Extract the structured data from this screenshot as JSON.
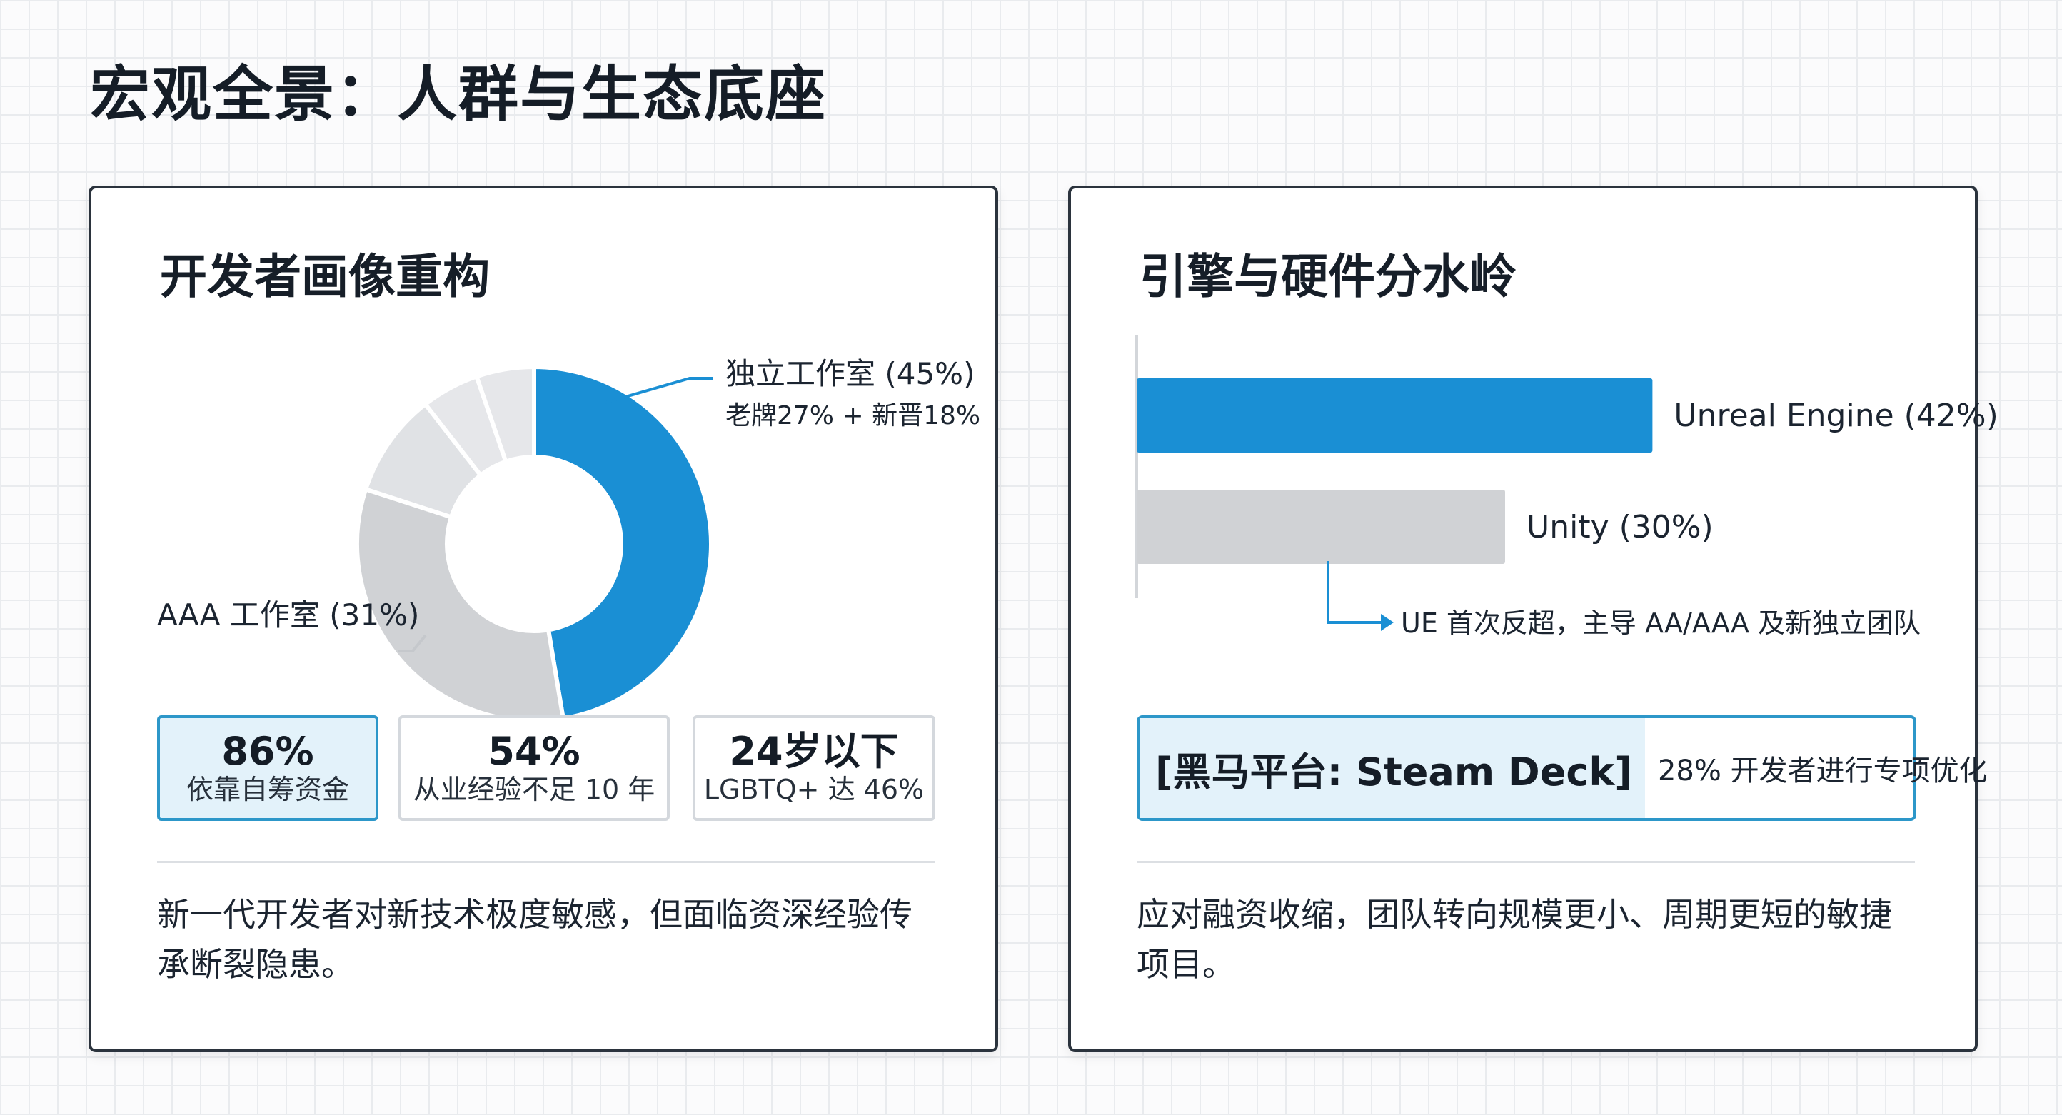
{
  "page_title": "宏观全景：人群与生态底座",
  "colors": {
    "accent": "#1a8fd4",
    "gray": "#d0d2d5",
    "light_gray": "#e1e3e6",
    "border": "#2b333d"
  },
  "left_card": {
    "title": "开发者画像重构",
    "stats": [
      {
        "value": "86%",
        "label": "依靠自筹资金",
        "highlight": true
      },
      {
        "value": "54%",
        "label": "从业经验不足 10 年",
        "highlight": false
      },
      {
        "value": "24岁以下",
        "label": "LGBTQ+ 达 46%",
        "highlight": false
      }
    ],
    "summary": "新一代开发者对新技术极度敏感，但面临资深经验传承断裂隐患。"
  },
  "right_card": {
    "title": "引擎与硬件分水岭",
    "annotation": "UE 首次反超，主导 AA/AAA 及新独立团队",
    "callout": {
      "tag": "[黑马平台: Steam Deck]",
      "text": "28% 开发者进行专项优化"
    },
    "summary": "应对融资收缩，团队转向规模更小、周期更短的敏捷项目。"
  },
  "chart_data": [
    {
      "type": "pie",
      "donut": true,
      "slices": [
        {
          "value": 45,
          "color": "#1a8fd4",
          "label": "独立工作室 (45%)",
          "sublabel": "老牌27% + 新晋18%"
        },
        {
          "value": 31,
          "color": "#d0d2d5",
          "label": "AAA 工作室 (31%)",
          "sublabel": ""
        },
        {
          "value": 9,
          "color": "#e0e2e5",
          "label": "",
          "sublabel": ""
        },
        {
          "value": 5,
          "color": "#e6e7ea",
          "label": "",
          "sublabel": ""
        },
        {
          "value": 5,
          "color": "#e6e7ea",
          "label": "",
          "sublabel": ""
        }
      ]
    },
    {
      "type": "bar",
      "orientation": "horizontal",
      "xlim": [
        0,
        50
      ],
      "bars": [
        {
          "label": "Unreal Engine (42%)",
          "value": 42,
          "color": "#1a8fd4"
        },
        {
          "label": "Unity (30%)",
          "value": 30,
          "color": "#d0d2d5"
        }
      ]
    }
  ]
}
